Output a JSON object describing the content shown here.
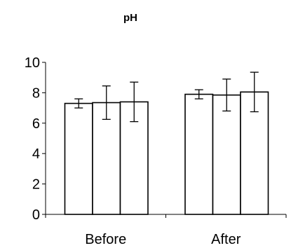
{
  "chart_data": {
    "type": "bar",
    "title": "pH",
    "xlabel": "",
    "ylabel": "",
    "categories": [
      "Before",
      "After"
    ],
    "ylim": [
      0,
      10
    ],
    "yticks": [
      0,
      2,
      4,
      6,
      8,
      10
    ],
    "grid": false,
    "legend": "none",
    "series": [
      {
        "values": [
          7.3,
          7.9
        ],
        "errors": [
          0.3,
          0.3
        ]
      },
      {
        "values": [
          7.35,
          7.85
        ],
        "errors": [
          1.1,
          1.05
        ]
      },
      {
        "values": [
          7.4,
          8.05
        ],
        "errors": [
          1.3,
          1.3
        ]
      }
    ],
    "bar_color": "#ffffff",
    "edge_color": "#000000"
  }
}
